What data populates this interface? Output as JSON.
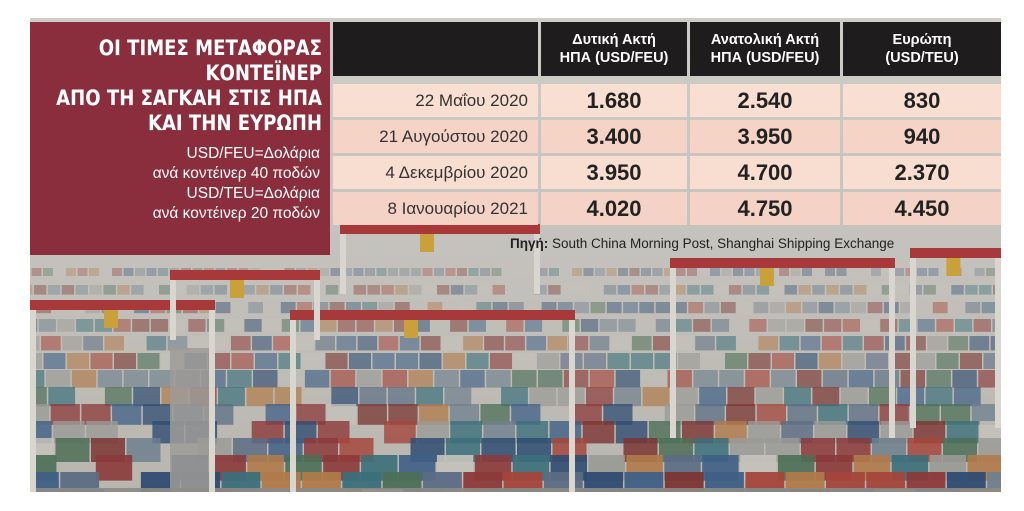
{
  "title_panel": {
    "headline": [
      "ΟΙ ΤΙΜΕΣ ΜΕΤΑΦΟΡΑΣ",
      "ΚΟΝΤΕΪΝΕΡ",
      "ΑΠΟ ΤΗ ΣΑΓΚΑΗ ΣΤΙΣ ΗΠΑ",
      "ΚΑΙ ΤΗΝ ΕΥΡΩΠΗ"
    ],
    "legend": [
      "USD/FEU=Δολάρια",
      "ανά κοντέινερ 40 ποδών",
      "USD/TEU=Δολάρια",
      "ανά κοντέινερ 20 ποδών"
    ]
  },
  "table": {
    "headers": [
      [
        "Δυτική Ακτή",
        "ΗΠΑ (USD/FEU)"
      ],
      [
        "Ανατολική Ακτή",
        "ΗΠΑ (USD/FEU)"
      ],
      [
        "Ευρώπη",
        "(USD/TEU)"
      ]
    ],
    "rows": [
      {
        "date": "22 Μαΐου 2020",
        "values": [
          "1.680",
          "2.540",
          "830"
        ]
      },
      {
        "date": "21 Αυγούστου 2020",
        "values": [
          "3.400",
          "3.950",
          "940"
        ]
      },
      {
        "date": "4 Δεκεμβρίου 2020",
        "values": [
          "3.950",
          "4.700",
          "2.370"
        ]
      },
      {
        "date": "8 Ιανουαρίου 2021",
        "values": [
          "4.020",
          "4.750",
          "4.450"
        ]
      }
    ]
  },
  "source": {
    "label": "Πηγή:",
    "text": " South China Morning Post, Shanghai Shipping Exchange"
  },
  "colors": {
    "title_panel": "#8a2e3e",
    "header": "#1e1c1d",
    "row_fill": "#f6d4c6"
  }
}
